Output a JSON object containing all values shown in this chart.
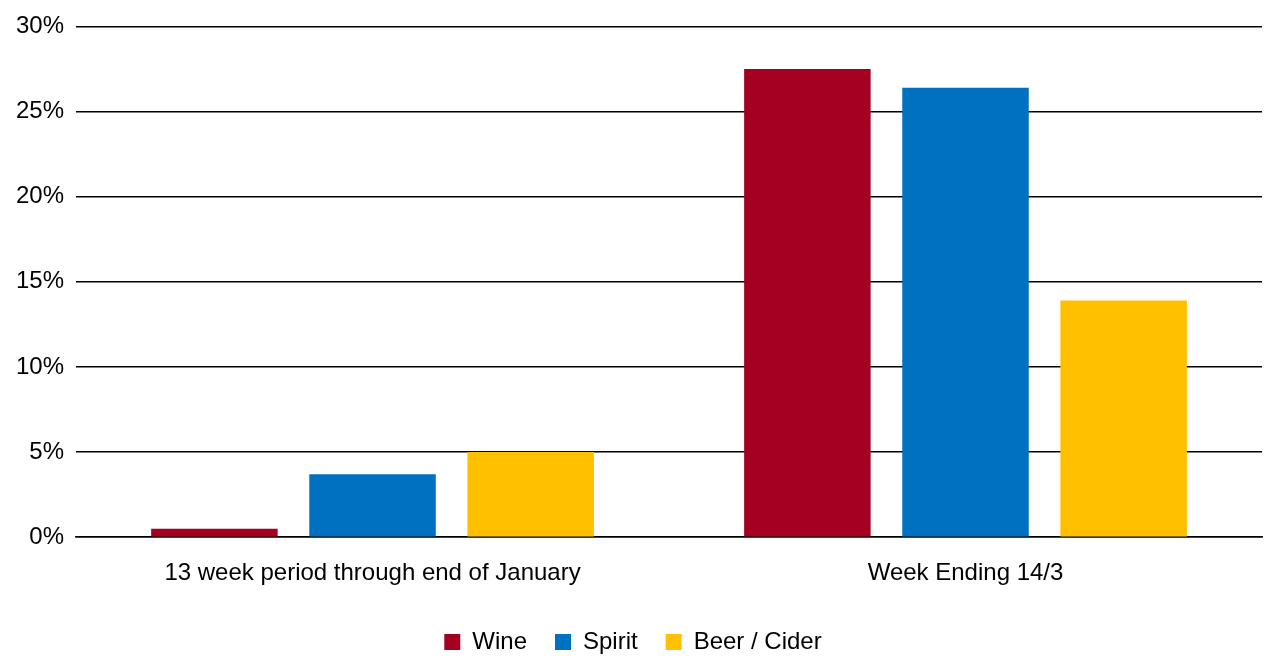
{
  "chart_data": {
    "type": "bar",
    "categories": [
      "13 week period through end of January",
      "Week Ending 14/3"
    ],
    "series": [
      {
        "name": "Wine",
        "color": "#a50021",
        "values": [
          0.5,
          27.5
        ]
      },
      {
        "name": "Spirit",
        "color": "#0070c0",
        "values": [
          3.7,
          26.4
        ]
      },
      {
        "name": "Beer / Cider",
        "color": "#ffc000",
        "values": [
          5.0,
          13.9
        ]
      }
    ],
    "ylim": [
      0,
      30
    ],
    "yticks": [
      {
        "value": 0,
        "label": "0%"
      },
      {
        "value": 5,
        "label": "5%"
      },
      {
        "value": 10,
        "label": "10%"
      },
      {
        "value": 15,
        "label": "15%"
      },
      {
        "value": 20,
        "label": "20%"
      },
      {
        "value": 25,
        "label": "25%"
      },
      {
        "value": 30,
        "label": "30%"
      }
    ],
    "grid": "y",
    "legend": "bottom"
  }
}
